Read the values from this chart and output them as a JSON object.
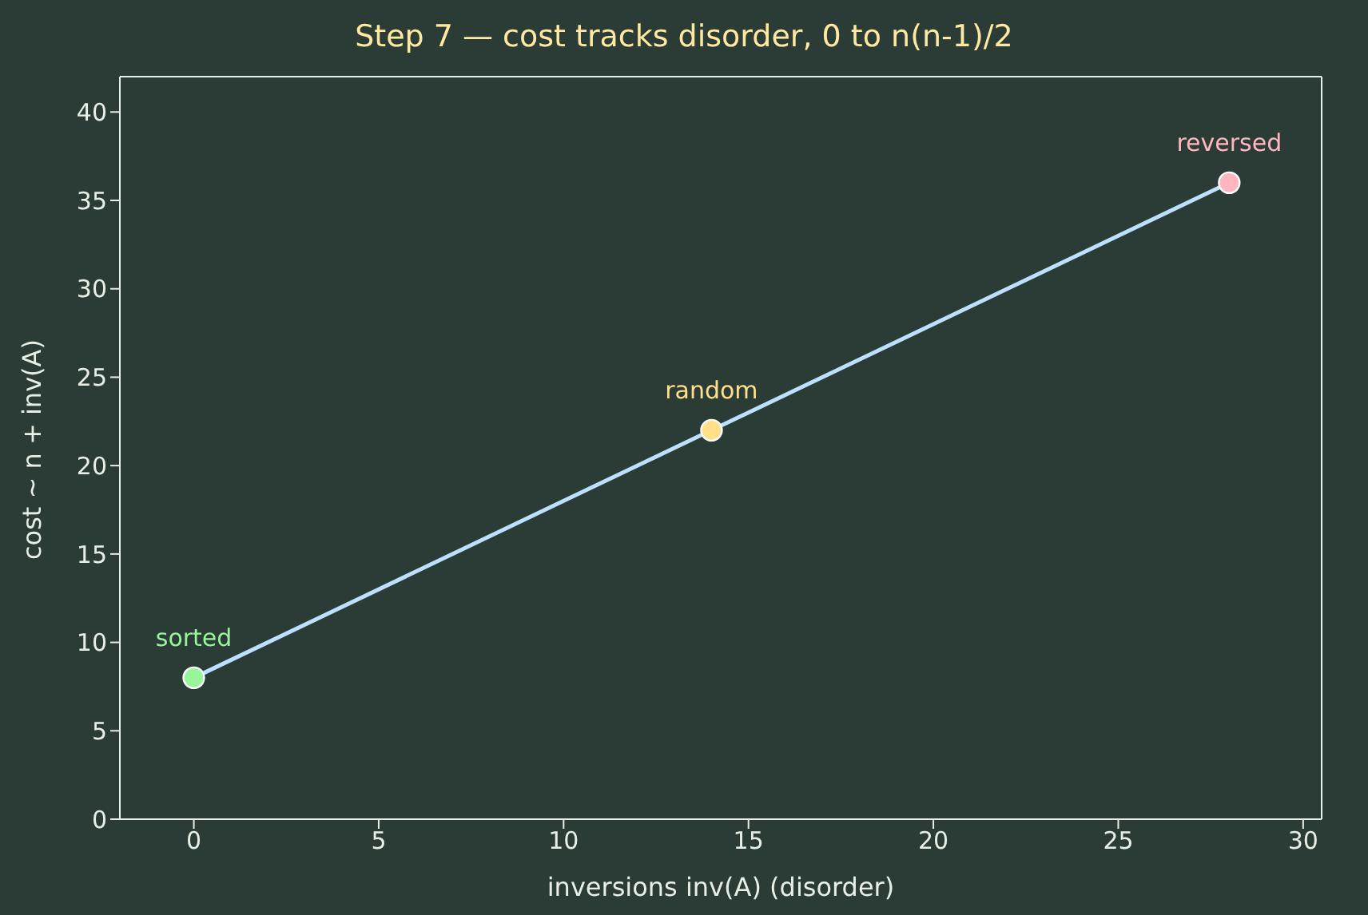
{
  "chart_data": {
    "type": "line",
    "title": "Step 7 — cost tracks disorder, 0 to n(n-1)/2",
    "xlabel": "inversions  inv(A)  (disorder)",
    "ylabel": "cost ~ n + inv(A)",
    "x": [
      0,
      14,
      28
    ],
    "series": [
      {
        "color": "#bde0fe",
        "colors": [
          "#98f59a",
          "#ffe08a",
          "#ffb6c1"
        ],
        "values": [
          8,
          22,
          36
        ]
      }
    ],
    "annotations": [
      {
        "text": "sorted",
        "x": 0,
        "y": 8
      },
      {
        "text": "random",
        "x": 14,
        "y": 22
      },
      {
        "text": "reversed",
        "x": 28,
        "y": 36
      }
    ],
    "xlim": [
      -2,
      30.5
    ],
    "xticks": [
      0,
      5,
      10,
      15,
      20,
      25,
      30
    ],
    "ylim": [
      0,
      42
    ],
    "yticks": [
      0,
      5,
      10,
      15,
      20,
      25,
      30,
      35,
      40
    ],
    "grid": false,
    "legend": false,
    "marker": "circle",
    "line_style": "solid"
  }
}
